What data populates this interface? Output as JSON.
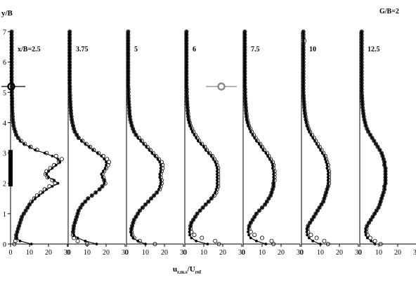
{
  "figure": {
    "corner_label": "G/B=2"
  },
  "chart_data": {
    "type": "line",
    "ylabel": "y/B",
    "xlabel": {
      "main": "u",
      "sub_main": "r.m.s",
      "slash": "/U",
      "sub_ref": "ref"
    },
    "ylim": [
      0,
      7
    ],
    "xlim": [
      0,
      30
    ],
    "y_ticks": [
      0,
      1,
      2,
      3,
      4,
      5,
      6,
      7
    ],
    "x_ticks": [
      0,
      10,
      20,
      30
    ],
    "grid": false,
    "legend": {
      "placement": "inside panels",
      "filled_marker_color": "#000000",
      "open_marker_color": "#888888"
    },
    "body_span_y": [
      1.9,
      3.1
    ],
    "y_grid_values": [
      0.0,
      0.1,
      0.2,
      0.3,
      0.4,
      0.5,
      0.6,
      0.7,
      0.8,
      0.9,
      1.0,
      1.1,
      1.2,
      1.3,
      1.4,
      1.5,
      1.6,
      1.7,
      1.8,
      1.9,
      2.0,
      2.1,
      2.2,
      2.3,
      2.4,
      2.5,
      2.6,
      2.7,
      2.8,
      2.9,
      3.0,
      3.1,
      3.2,
      3.3,
      3.4,
      3.5,
      3.6,
      3.7,
      3.8,
      3.9,
      4.0,
      4.1,
      4.2,
      4.3,
      4.4,
      4.5,
      4.6,
      4.7,
      4.8,
      4.9,
      5.0,
      5.1,
      5.2,
      5.3,
      5.4,
      5.5,
      5.6,
      5.7,
      5.8,
      5.9,
      6.0,
      6.1,
      6.2,
      6.3,
      6.4,
      6.5,
      6.6,
      6.7,
      6.8,
      6.9,
      7.0
    ],
    "panels": [
      {
        "label": "x/B=2.5",
        "filled": [
          11.0,
          5.0,
          3.0,
          3.0,
          3.5,
          4.0,
          4.5,
          5.0,
          5.5,
          6.0,
          7.0,
          8.0,
          9.0,
          10.0,
          11.5,
          13.0,
          15.0,
          17.0,
          19.0,
          22.0,
          25.0,
          23.0,
          20.0,
          19.0,
          20.0,
          22.0,
          24.0,
          26.0,
          25.0,
          22.0,
          18.0,
          13.0,
          10.0,
          7.0,
          5.0,
          4.0,
          3.0,
          2.5,
          2.0,
          1.6,
          1.4,
          1.2,
          1.1,
          1.0,
          0.9,
          0.9,
          0.8,
          0.8,
          0.8,
          0.7,
          0.7,
          0.7,
          0.7,
          0.6,
          0.6,
          0.6,
          0.6,
          0.6,
          0.6,
          0.6,
          0.6,
          0.6,
          0.6,
          0.6,
          0.6,
          0.6,
          0.6,
          0.6,
          0.6,
          0.6,
          0.6
        ],
        "open": [
          2.0,
          2.5,
          3.0,
          3.0,
          3.5,
          4.0,
          4.5,
          5.0,
          5.5,
          6.0,
          7.0,
          8.0,
          9.0,
          10.0,
          11.0,
          12.5,
          14.0,
          16.0,
          18.0,
          20.5,
          23.5,
          22.0,
          19.5,
          18.5,
          19.0,
          21.0,
          23.0,
          25.5,
          27.0,
          24.0,
          19.0,
          14.0,
          10.5,
          7.5,
          5.5,
          4.0,
          3.0,
          2.5,
          2.0,
          1.6,
          1.4,
          1.2,
          1.1,
          1.0,
          0.9,
          0.9,
          0.8,
          0.8,
          0.8,
          0.7,
          0.7,
          0.7,
          0.7,
          0.6,
          0.6,
          0.6,
          0.6,
          0.6,
          0.6,
          0.6,
          0.6,
          0.6,
          0.6,
          0.6,
          0.6,
          0.6,
          0.6,
          0.6,
          0.6,
          0.6,
          0.6
        ]
      },
      {
        "label": "3.75",
        "filled": [
          15.0,
          9.0,
          5.0,
          3.0,
          2.6,
          2.8,
          3.0,
          3.5,
          4.0,
          4.5,
          5.0,
          5.5,
          6.5,
          7.5,
          9.0,
          10.5,
          12.5,
          14.5,
          16.5,
          18.0,
          19.0,
          19.0,
          18.0,
          17.5,
          18.5,
          19.5,
          20.0,
          20.0,
          19.0,
          17.5,
          15.5,
          13.0,
          11.0,
          9.0,
          7.0,
          5.5,
          4.5,
          3.5,
          3.0,
          2.6,
          2.2,
          1.9,
          1.7,
          1.5,
          1.4,
          1.3,
          1.2,
          1.1,
          1.0,
          1.0,
          0.9,
          0.9,
          0.9,
          0.8,
          0.8,
          0.8,
          0.8,
          0.8,
          0.8,
          0.8,
          0.8,
          0.8,
          0.8,
          0.8,
          0.8,
          0.8,
          0.8,
          0.8,
          0.8,
          0.8,
          0.8
        ],
        "open": [
          10.0,
          5.0,
          3.0,
          2.6,
          2.6,
          2.8,
          3.0,
          3.5,
          4.0,
          4.5,
          5.0,
          5.5,
          6.5,
          7.5,
          9.0,
          10.5,
          12.5,
          14.5,
          16.5,
          18.0,
          19.5,
          19.0,
          18.5,
          18.0,
          19.0,
          20.0,
          21.0,
          21.5,
          20.5,
          18.5,
          16.0,
          13.5,
          11.5,
          9.5,
          7.5,
          5.5,
          4.5,
          3.5,
          3.0,
          2.6,
          2.2,
          1.9,
          1.7,
          1.5,
          1.4,
          1.3,
          1.2,
          1.1,
          1.0,
          1.0,
          0.9,
          0.9,
          0.9,
          0.8,
          0.8,
          0.8,
          0.8,
          0.8,
          0.8,
          0.8,
          0.8,
          0.8,
          0.8,
          0.8,
          0.8,
          0.8,
          0.8,
          0.8,
          0.8,
          0.8,
          0.8
        ]
      },
      {
        "label": "5",
        "filled": [
          10.0,
          6.0,
          3.5,
          2.6,
          2.4,
          2.6,
          3.0,
          3.5,
          4.0,
          5.0,
          6.0,
          7.0,
          8.5,
          10.0,
          11.5,
          13.0,
          14.5,
          16.0,
          17.0,
          17.5,
          18.0,
          18.0,
          17.5,
          17.5,
          18.0,
          18.0,
          18.0,
          17.5,
          16.5,
          15.0,
          13.5,
          12.0,
          10.5,
          9.0,
          7.5,
          6.0,
          5.0,
          4.0,
          3.4,
          2.8,
          2.4,
          2.0,
          1.8,
          1.6,
          1.5,
          1.4,
          1.3,
          1.2,
          1.1,
          1.0,
          1.0,
          1.0,
          0.9,
          0.9,
          0.9,
          0.9,
          0.9,
          0.9,
          0.9,
          0.9,
          0.9,
          0.9,
          0.9,
          0.9,
          0.9,
          0.9,
          0.9,
          0.9,
          0.9,
          0.9,
          0.9
        ],
        "open": [
          15.0,
          7.0,
          4.0,
          3.0,
          2.6,
          2.6,
          3.0,
          3.5,
          4.0,
          5.0,
          6.0,
          7.0,
          8.5,
          10.0,
          11.5,
          13.0,
          14.5,
          16.0,
          17.5,
          18.0,
          18.5,
          18.5,
          18.0,
          18.0,
          18.5,
          19.0,
          19.0,
          18.5,
          17.0,
          15.5,
          14.0,
          12.5,
          11.0,
          9.5,
          8.0,
          6.5,
          5.0,
          4.0,
          3.4,
          2.8,
          2.4,
          2.0,
          1.8,
          1.6,
          1.5,
          1.4,
          1.3,
          1.2,
          1.1,
          1.0,
          1.0,
          1.0,
          0.9,
          0.9,
          0.9,
          0.9,
          0.9,
          0.9,
          0.9,
          0.9,
          0.9,
          0.9,
          0.9,
          0.9,
          0.9,
          0.9,
          0.9,
          0.9,
          0.9,
          0.9,
          0.9
        ]
      },
      {
        "label": "6",
        "filled": [
          12.0,
          6.0,
          3.5,
          2.6,
          2.4,
          2.6,
          3.0,
          3.5,
          4.5,
          5.5,
          6.5,
          8.0,
          9.5,
          11.0,
          12.5,
          14.0,
          15.0,
          16.0,
          16.5,
          17.0,
          17.0,
          17.0,
          17.0,
          17.0,
          17.0,
          17.0,
          16.5,
          16.0,
          15.0,
          14.0,
          12.5,
          11.0,
          10.0,
          8.5,
          7.0,
          6.0,
          5.0,
          4.0,
          3.4,
          2.8,
          2.4,
          2.0,
          1.8,
          1.6,
          1.5,
          1.4,
          1.3,
          1.2,
          1.1,
          1.0,
          1.0,
          1.0,
          0.9,
          0.9,
          0.9,
          0.9,
          0.9,
          0.9,
          0.9,
          0.9,
          0.9,
          0.9,
          0.9,
          0.9,
          0.9,
          0.9,
          0.9,
          0.9,
          0.9,
          0.9,
          0.9
        ],
        "open": [
          18.0,
          16.0,
          9.0,
          5.0,
          3.5,
          3.0,
          3.0,
          3.5,
          4.5,
          5.5,
          6.5,
          8.0,
          9.5,
          11.0,
          12.5,
          14.0,
          15.5,
          16.5,
          17.0,
          17.5,
          17.5,
          17.5,
          17.5,
          17.5,
          17.5,
          17.5,
          17.0,
          16.5,
          15.5,
          14.5,
          13.0,
          11.5,
          10.5,
          9.0,
          7.5,
          6.5,
          5.5,
          4.5,
          3.8,
          3.0,
          2.5,
          2.1,
          1.9,
          1.7,
          1.5,
          1.4,
          1.3,
          1.2,
          1.1,
          1.0,
          1.0,
          1.0,
          0.9,
          0.9,
          0.9,
          0.9,
          0.9,
          0.9,
          0.9,
          0.9,
          0.9,
          0.9,
          0.9,
          0.9,
          0.9,
          0.9,
          0.9,
          0.9,
          0.9,
          0.9,
          0.9
        ]
      },
      {
        "label": "7.5",
        "filled": [
          12.0,
          7.0,
          4.0,
          3.0,
          2.6,
          2.8,
          3.2,
          4.0,
          5.0,
          6.0,
          7.0,
          8.5,
          10.0,
          11.5,
          12.5,
          13.5,
          14.5,
          15.0,
          15.5,
          16.0,
          16.0,
          16.0,
          16.0,
          16.0,
          16.0,
          15.5,
          15.5,
          15.0,
          14.0,
          13.0,
          12.0,
          10.5,
          9.5,
          8.5,
          7.0,
          6.0,
          5.0,
          4.0,
          3.4,
          2.8,
          2.4,
          2.0,
          1.8,
          1.6,
          1.5,
          1.4,
          1.3,
          1.2,
          1.1,
          1.0,
          1.0,
          1.0,
          0.9,
          0.9,
          0.9,
          0.9,
          0.9,
          0.9,
          0.9,
          0.9,
          0.9,
          0.9,
          0.9,
          0.9,
          0.9,
          0.9,
          0.9,
          0.9,
          0.9,
          0.9,
          0.9
        ],
        "open": [
          16.0,
          15.0,
          10.0,
          6.0,
          4.0,
          3.2,
          3.2,
          4.0,
          5.0,
          6.0,
          7.0,
          8.5,
          10.0,
          11.5,
          12.5,
          13.5,
          14.5,
          15.0,
          15.5,
          16.0,
          16.0,
          16.5,
          16.5,
          16.5,
          16.5,
          16.0,
          16.0,
          15.5,
          14.5,
          13.5,
          12.5,
          11.0,
          10.0,
          9.0,
          7.5,
          6.5,
          5.5,
          4.5,
          3.8,
          3.0,
          2.5,
          2.1,
          1.9,
          1.7,
          1.5,
          1.4,
          1.3,
          1.2,
          1.1,
          1.0,
          1.0,
          1.0,
          0.9,
          0.9,
          0.9,
          0.9,
          0.9,
          0.9,
          0.9,
          0.9,
          0.9,
          0.9,
          0.9,
          0.9,
          0.9,
          0.9,
          0.9,
          0.9,
          0.9,
          0.9,
          0.9
        ]
      },
      {
        "label": "10",
        "filled": [
          10.0,
          6.0,
          4.0,
          3.0,
          2.8,
          3.0,
          3.5,
          4.5,
          5.5,
          6.5,
          7.5,
          8.5,
          9.5,
          10.5,
          11.5,
          12.0,
          12.5,
          13.0,
          13.5,
          14.0,
          14.0,
          14.0,
          14.0,
          14.0,
          14.0,
          13.5,
          13.5,
          13.0,
          12.5,
          12.0,
          11.0,
          10.0,
          9.0,
          8.0,
          7.0,
          6.0,
          5.0,
          4.2,
          3.6,
          3.0,
          2.6,
          2.3,
          2.0,
          1.8,
          1.6,
          1.5,
          1.4,
          1.3,
          1.2,
          1.1,
          1.0,
          1.0,
          1.0,
          1.0,
          1.0,
          1.0,
          1.0,
          1.0,
          1.0,
          1.0,
          1.0,
          1.0,
          1.0,
          1.0,
          1.0,
          1.0,
          1.0,
          1.0,
          1.0,
          1.0,
          1.0
        ],
        "open": [
          14.0,
          12.0,
          8.0,
          5.0,
          3.5,
          3.2,
          3.5,
          4.5,
          5.5,
          6.5,
          7.5,
          8.5,
          9.5,
          10.5,
          11.5,
          12.0,
          12.5,
          13.0,
          13.5,
          14.0,
          14.5,
          14.5,
          14.5,
          14.5,
          14.5,
          14.0,
          14.0,
          13.5,
          13.0,
          12.5,
          11.5,
          10.5,
          9.5,
          8.5,
          7.5,
          6.5,
          5.5,
          4.5,
          3.8,
          3.2,
          2.8,
          2.4,
          2.1,
          1.9,
          1.7,
          1.5,
          1.4,
          1.3,
          1.2,
          1.1,
          1.0,
          1.0,
          1.0,
          1.0,
          1.0,
          1.0,
          1.0,
          1.0,
          1.0,
          1.0,
          1.0,
          1.0,
          1.0,
          1.0,
          1.0,
          1.0,
          1.0,
          1.5,
          1.0,
          1.0,
          1.0
        ]
      },
      {
        "label": "12.5",
        "filled": [
          8.0,
          6.0,
          4.0,
          3.2,
          3.0,
          3.2,
          3.8,
          4.8,
          5.8,
          6.8,
          7.8,
          8.8,
          9.8,
          10.5,
          11.0,
          11.5,
          12.0,
          12.5,
          13.0,
          13.0,
          13.5,
          13.5,
          13.5,
          13.5,
          13.5,
          13.5,
          13.0,
          13.0,
          12.5,
          12.0,
          11.5,
          10.5,
          9.5,
          8.5,
          7.5,
          6.5,
          5.5,
          4.5,
          3.8,
          3.2,
          2.8,
          2.4,
          2.1,
          1.9,
          1.7,
          1.5,
          1.4,
          1.3,
          1.2,
          1.1,
          1.0,
          1.0,
          1.0,
          1.0,
          1.0,
          1.0,
          1.0,
          1.0,
          1.0,
          1.0,
          1.0,
          1.0,
          1.0,
          1.0,
          1.0,
          1.0,
          1.0,
          1.0,
          1.0,
          1.0,
          1.0
        ],
        "open": [
          11.0,
          8.0,
          5.5,
          4.0,
          3.4,
          3.4,
          3.8,
          4.8,
          5.8,
          6.8,
          7.8,
          8.8,
          9.8,
          10.5,
          11.0,
          11.5,
          12.0,
          12.5,
          13.0,
          13.0,
          13.5,
          13.5,
          13.5,
          13.5,
          13.5,
          13.5,
          13.0,
          13.0,
          12.5,
          12.0,
          11.5,
          10.5,
          9.5,
          8.5,
          7.5,
          6.5,
          5.5,
          4.5,
          3.8,
          3.2,
          2.8,
          2.4,
          2.1,
          1.9,
          1.7,
          1.5,
          1.4,
          1.3,
          1.2,
          1.1,
          1.0,
          1.0,
          1.0,
          1.0,
          1.0,
          1.0,
          1.0,
          1.0,
          1.0,
          1.0,
          1.0,
          1.0,
          1.0,
          1.0,
          1.0,
          1.0,
          1.0,
          1.0,
          1.0,
          1.0,
          1.0
        ]
      }
    ]
  }
}
